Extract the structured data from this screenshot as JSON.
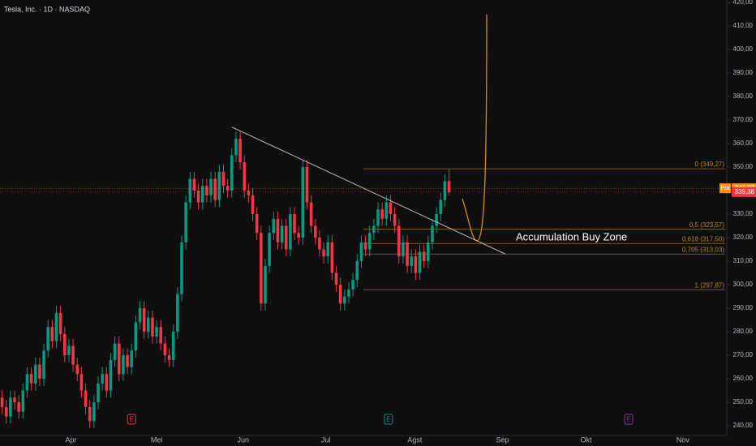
{
  "chart_data": {
    "type": "candlestick",
    "title": "Tesla, Inc. · 1D · NASDAQ",
    "open": [
      252,
      248,
      244,
      252,
      250,
      246,
      255,
      262,
      258,
      266,
      260,
      272,
      282,
      276,
      288,
      279,
      270,
      274,
      266,
      262,
      255,
      248,
      242,
      250,
      258,
      262,
      255,
      268,
      275,
      262,
      270,
      265,
      272,
      284,
      290,
      280,
      286,
      278,
      282,
      275,
      270,
      268,
      280,
      296,
      318,
      335,
      345,
      340,
      335,
      342,
      338,
      345,
      336,
      348,
      342,
      340,
      355,
      362,
      352,
      340,
      338,
      330,
      322,
      292,
      308,
      322,
      328,
      318,
      325,
      315,
      330,
      322,
      320,
      350,
      335,
      325,
      320,
      315,
      312,
      318,
      305,
      300,
      292,
      295,
      298,
      302,
      310,
      318,
      315,
      322,
      325,
      332,
      328,
      335,
      330,
      325,
      312,
      318,
      308,
      312,
      305,
      314,
      310,
      318,
      325,
      330,
      336,
      344
    ],
    "high": [
      255,
      251,
      255,
      255,
      253,
      258,
      265,
      265,
      269,
      269,
      275,
      285,
      285,
      291,
      291,
      282,
      277,
      277,
      269,
      265,
      258,
      251,
      253,
      261,
      265,
      265,
      271,
      278,
      278,
      273,
      273,
      275,
      287,
      293,
      293,
      289,
      289,
      285,
      285,
      278,
      273,
      283,
      299,
      321,
      338,
      348,
      348,
      343,
      345,
      345,
      348,
      348,
      351,
      351,
      345,
      358,
      365,
      365,
      355,
      343,
      341,
      333,
      325,
      311,
      325,
      331,
      331,
      328,
      328,
      333,
      333,
      325,
      353,
      353,
      338,
      328,
      323,
      318,
      321,
      321,
      308,
      303,
      298,
      301,
      305,
      313,
      321,
      321,
      325,
      328,
      335,
      335,
      338,
      338,
      333,
      328,
      321,
      321,
      315,
      315,
      317,
      317,
      321,
      328,
      333,
      339,
      347,
      349
    ],
    "low": [
      245,
      241,
      241,
      247,
      243,
      243,
      252,
      255,
      255,
      257,
      257,
      269,
      273,
      273,
      276,
      267,
      267,
      263,
      259,
      252,
      245,
      239,
      239,
      247,
      255,
      252,
      252,
      265,
      259,
      259,
      262,
      262,
      269,
      281,
      277,
      277,
      275,
      275,
      272,
      267,
      265,
      265,
      277,
      293,
      315,
      332,
      337,
      332,
      332,
      335,
      335,
      333,
      333,
      339,
      337,
      337,
      352,
      349,
      337,
      335,
      327,
      319,
      289,
      289,
      305,
      319,
      315,
      315,
      312,
      312,
      319,
      317,
      317,
      332,
      322,
      317,
      312,
      309,
      309,
      302,
      297,
      289,
      289,
      292,
      295,
      299,
      307,
      312,
      312,
      319,
      322,
      325,
      325,
      327,
      322,
      309,
      309,
      305,
      305,
      302,
      302,
      307,
      307,
      315,
      322,
      327,
      333,
      338
    ],
    "close": [
      248,
      244,
      252,
      250,
      246,
      255,
      262,
      258,
      266,
      260,
      272,
      282,
      276,
      288,
      279,
      270,
      274,
      266,
      262,
      255,
      248,
      242,
      250,
      258,
      262,
      255,
      268,
      275,
      262,
      270,
      265,
      272,
      284,
      290,
      280,
      286,
      278,
      282,
      275,
      270,
      268,
      280,
      296,
      318,
      335,
      345,
      340,
      335,
      342,
      338,
      345,
      336,
      348,
      342,
      340,
      355,
      362,
      352,
      340,
      338,
      330,
      322,
      292,
      308,
      322,
      328,
      318,
      325,
      315,
      330,
      322,
      320,
      350,
      335,
      325,
      320,
      315,
      312,
      318,
      305,
      300,
      292,
      295,
      298,
      302,
      310,
      318,
      315,
      322,
      325,
      332,
      328,
      335,
      330,
      325,
      312,
      318,
      308,
      312,
      305,
      314,
      310,
      318,
      325,
      330,
      336,
      344,
      339.38
    ],
    "up_color": "#089981",
    "down_color": "#f23645",
    "xlim": [
      -0.5,
      173.5
    ],
    "xticks": [
      {
        "value": 16.5,
        "label": "Apr"
      },
      {
        "value": 37,
        "label": "Mei"
      },
      {
        "value": 57.7,
        "label": "Jun"
      },
      {
        "value": 77.5,
        "label": "Jul"
      },
      {
        "value": 98.8,
        "label": "Agst"
      },
      {
        "value": 119.8,
        "label": "Sep"
      },
      {
        "value": 139.8,
        "label": "Okt"
      },
      {
        "value": 163,
        "label": "Nov"
      }
    ],
    "ylim": [
      236.6,
      421
    ],
    "yticks": [
      {
        "value": 240,
        "label": "240,00"
      },
      {
        "value": 250,
        "label": "250,00"
      },
      {
        "value": 260,
        "label": "260,00"
      },
      {
        "value": 270,
        "label": "270,00"
      },
      {
        "value": 280,
        "label": "280,00"
      },
      {
        "value": 290,
        "label": "290,00"
      },
      {
        "value": 300,
        "label": "300,00"
      },
      {
        "value": 310,
        "label": "310,00"
      },
      {
        "value": 320,
        "label": "320,00"
      },
      {
        "value": 330,
        "label": "330,00"
      },
      {
        "value": 340,
        "label": "340,00"
      },
      {
        "value": 350,
        "label": "350,00"
      },
      {
        "value": 360,
        "label": "360,00"
      },
      {
        "value": 370,
        "label": "370,00"
      },
      {
        "value": 380,
        "label": "380,00"
      },
      {
        "value": 390,
        "label": "390,00"
      },
      {
        "value": 400,
        "label": "400,00"
      },
      {
        "value": 410,
        "label": "410,00"
      },
      {
        "value": 420,
        "label": "420,00"
      }
    ],
    "fib_start": 86.5,
    "fib_color": "#b8862b",
    "fib_levels": [
      {
        "value": 349.27,
        "label": "0 (349,27)"
      },
      {
        "value": 323.57,
        "label": "0,5 (323,57)"
      },
      {
        "value": 317.5,
        "label": "0,618 (317,50)"
      },
      {
        "value": 313.03,
        "label": "0,705 (313,03)"
      },
      {
        "value": 297.87,
        "label": "1 (297,87)"
      }
    ],
    "trend_line": {
      "x": [
        55,
        120.5
      ],
      "y": [
        367,
        313
      ]
    },
    "annotation": {
      "text": "Accumulation Buy Zone",
      "x": 123,
      "y": 320
    },
    "events": [
      {
        "label": "E",
        "x": 31
      },
      {
        "label": "E",
        "x": 92.5
      },
      {
        "label": "E",
        "x": 150
      }
    ],
    "price_tags": [
      {
        "prefix": "Pra",
        "value": 340.97,
        "label": "340,97",
        "color": "#f7931a"
      },
      {
        "value": 339.38,
        "label": "339,38",
        "color": "#f23645"
      }
    ]
  }
}
